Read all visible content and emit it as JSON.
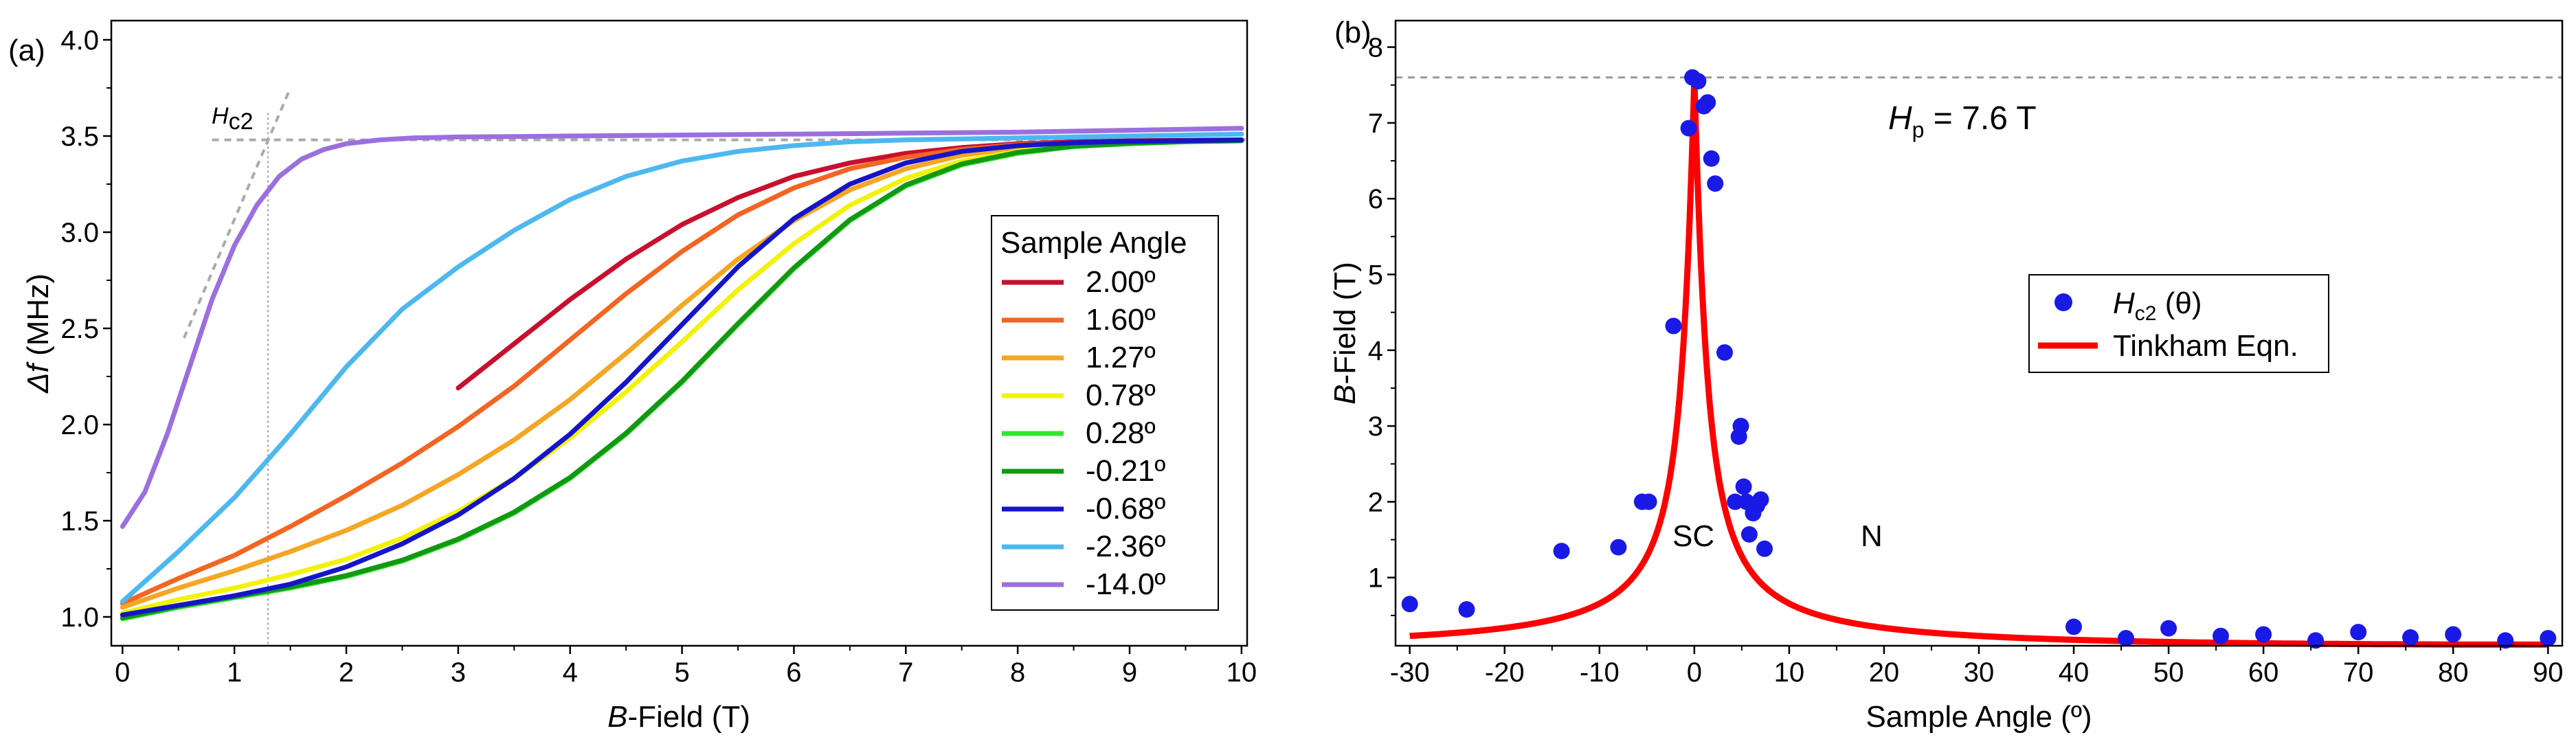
{
  "chart_data": [
    {
      "panel": "(a)",
      "type": "line",
      "xlabel_italic": "B",
      "xlabel_rest": "-Field (T)",
      "ylabel_italic": "Δf",
      "ylabel_rest": " (MHz)",
      "xlim": [
        -0.1,
        10.05
      ],
      "ylim": [
        0.85,
        4.1
      ],
      "xticks": [
        "0",
        "1",
        "2",
        "3",
        "4",
        "5",
        "6",
        "7",
        "8",
        "9",
        "10"
      ],
      "yticks": [
        "1.0",
        "1.5",
        "2.0",
        "2.5",
        "3.0",
        "3.5",
        "4.0"
      ],
      "legend_title": "Sample Angle",
      "annotation": {
        "main": "H",
        "sub": "c2",
        "x": 1.3
      },
      "guides": {
        "plateau_y": 3.48,
        "hc2_x": 1.3
      },
      "series": [
        {
          "name": "2.00º",
          "color": "#c8102e",
          "x": [
            3.0,
            3.5,
            4.0,
            4.5,
            5.0,
            5.5,
            6.0,
            6.5,
            7.0,
            7.5,
            8.0,
            8.5,
            9.0,
            9.5,
            10.0
          ],
          "y": [
            2.19,
            2.42,
            2.65,
            2.86,
            3.04,
            3.18,
            3.29,
            3.36,
            3.41,
            3.44,
            3.46,
            3.47,
            3.475,
            3.478,
            3.48
          ]
        },
        {
          "name": "1.60º",
          "color": "#f26522",
          "x": [
            0,
            0.5,
            1.0,
            1.5,
            2.0,
            2.5,
            3.0,
            3.5,
            4.0,
            4.5,
            5.0,
            5.5,
            6.0,
            6.5,
            7.0,
            7.5,
            8.0,
            8.5,
            9.0,
            9.5,
            10.0
          ],
          "y": [
            1.07,
            1.2,
            1.32,
            1.47,
            1.63,
            1.8,
            1.99,
            2.2,
            2.44,
            2.68,
            2.9,
            3.09,
            3.23,
            3.33,
            3.39,
            3.43,
            3.455,
            3.465,
            3.47,
            3.475,
            3.48
          ]
        },
        {
          "name": "1.27º",
          "color": "#f5a623",
          "x": [
            0,
            0.5,
            1.0,
            1.5,
            2.0,
            2.5,
            3.0,
            3.5,
            4.0,
            4.5,
            5.0,
            5.5,
            6.0,
            6.5,
            7.0,
            7.5,
            8.0,
            8.5,
            9.0,
            9.5,
            10.0
          ],
          "y": [
            1.05,
            1.15,
            1.24,
            1.34,
            1.45,
            1.58,
            1.74,
            1.92,
            2.13,
            2.37,
            2.62,
            2.86,
            3.06,
            3.22,
            3.33,
            3.4,
            3.44,
            3.46,
            3.47,
            3.475,
            3.48
          ]
        },
        {
          "name": "0.78º",
          "color": "#f2f20a",
          "x": [
            0,
            0.5,
            1.0,
            1.5,
            2.0,
            2.5,
            3.0,
            3.5,
            4.0,
            4.5,
            5.0,
            5.5,
            6.0,
            6.5,
            7.0,
            7.5,
            8.0,
            8.5,
            9.0,
            9.5,
            10.0
          ],
          "y": [
            1.02,
            1.09,
            1.15,
            1.22,
            1.3,
            1.41,
            1.55,
            1.72,
            1.93,
            2.17,
            2.43,
            2.7,
            2.94,
            3.14,
            3.28,
            3.37,
            3.42,
            3.45,
            3.465,
            3.47,
            3.475
          ]
        },
        {
          "name": "0.28º",
          "color": "#33e633",
          "x": [
            0,
            0.5,
            1.0,
            1.5,
            2.0,
            2.5,
            3.0,
            3.5,
            4.0,
            4.5,
            5.0,
            5.5,
            6.0,
            6.5,
            7.0,
            7.5,
            8.0,
            8.5,
            9.0,
            9.5,
            10.0
          ],
          "y": [
            0.99,
            1.05,
            1.1,
            1.15,
            1.21,
            1.29,
            1.4,
            1.54,
            1.72,
            1.95,
            2.22,
            2.52,
            2.81,
            3.06,
            3.24,
            3.35,
            3.41,
            3.445,
            3.46,
            3.47,
            3.475
          ]
        },
        {
          "name": "-0.21º",
          "color": "#119911",
          "x": [
            0,
            0.5,
            1.0,
            1.5,
            2.0,
            2.5,
            3.0,
            3.5,
            4.0,
            4.5,
            5.0,
            5.5,
            6.0,
            6.5,
            7.0,
            7.5,
            8.0,
            8.5,
            9.0,
            9.5,
            10.0
          ],
          "y": [
            0.995,
            1.055,
            1.105,
            1.155,
            1.215,
            1.295,
            1.405,
            1.545,
            1.725,
            1.955,
            2.225,
            2.525,
            2.815,
            3.065,
            3.245,
            3.355,
            3.415,
            3.447,
            3.462,
            3.471,
            3.476
          ]
        },
        {
          "name": "-0.68º",
          "color": "#1515c8",
          "x": [
            0,
            0.5,
            1.0,
            1.5,
            2.0,
            2.5,
            3.0,
            3.5,
            4.0,
            4.5,
            5.0,
            5.5,
            6.0,
            6.5,
            7.0,
            7.5,
            8.0,
            8.5,
            9.0,
            9.5,
            10.0
          ],
          "y": [
            1.01,
            1.06,
            1.11,
            1.17,
            1.26,
            1.38,
            1.53,
            1.72,
            1.95,
            2.22,
            2.52,
            2.82,
            3.07,
            3.25,
            3.36,
            3.42,
            3.45,
            3.465,
            3.472,
            3.476,
            3.48
          ]
        },
        {
          "name": "-2.36º",
          "color": "#4db8f0",
          "x": [
            0,
            0.5,
            1.0,
            1.5,
            2.0,
            2.5,
            3.0,
            3.5,
            4.0,
            4.5,
            5.0,
            5.5,
            6.0,
            6.5,
            7.0,
            7.5,
            8.0,
            8.5,
            9.0,
            9.5,
            10.0
          ],
          "y": [
            1.08,
            1.34,
            1.62,
            1.95,
            2.3,
            2.6,
            2.82,
            3.01,
            3.17,
            3.29,
            3.37,
            3.42,
            3.45,
            3.47,
            3.48,
            3.485,
            3.49,
            3.495,
            3.5,
            3.505,
            3.51
          ]
        },
        {
          "name": "-14.0º",
          "color": "#9b6fe0",
          "x": [
            0,
            0.2,
            0.4,
            0.6,
            0.8,
            1.0,
            1.2,
            1.4,
            1.6,
            1.8,
            2.0,
            2.3,
            2.6,
            3.0,
            4.0,
            5.0,
            6.0,
            7.0,
            8.0,
            9.0,
            10.0
          ],
          "y": [
            1.47,
            1.65,
            1.95,
            2.3,
            2.65,
            2.93,
            3.14,
            3.29,
            3.38,
            3.43,
            3.46,
            3.48,
            3.49,
            3.495,
            3.5,
            3.505,
            3.51,
            3.515,
            3.52,
            3.53,
            3.54
          ]
        }
      ]
    },
    {
      "panel": "(b)",
      "type": "scatter",
      "xlabel": "Sample Angle (º)",
      "ylabel_italic": "B",
      "ylabel_rest": "-Field (T)",
      "xlim": [
        -31.5,
        91.5
      ],
      "ylim": [
        0.1,
        8.35
      ],
      "xticks": [
        "-30",
        "-20",
        "-10",
        "0",
        "10",
        "20",
        "30",
        "40",
        "50",
        "60",
        "70",
        "80",
        "90"
      ],
      "yticks": [
        "1",
        "2",
        "3",
        "4",
        "5",
        "6",
        "7",
        "8"
      ],
      "hp_label": {
        "main": "H",
        "sub": "p",
        "rest": " = 7.6 T",
        "value": 7.6
      },
      "region_labels": [
        {
          "text": "SC",
          "x": 0.0,
          "y": 1.0
        },
        {
          "text": "N",
          "x": 18.5,
          "y": 1.0
        }
      ],
      "legend": {
        "scatter_label_main": "H",
        "scatter_label_sub": "c2",
        "scatter_label_rest": " (θ)",
        "fit_label": "Tinkham Eqn."
      },
      "colors": {
        "points": "#1a1ae6",
        "fit": "#ff0000",
        "guide": "#999999"
      },
      "fit": {
        "equation": "Tinkham",
        "hp": 7.6,
        "hperp": 0.115
      },
      "points": [
        {
          "x": -30,
          "y": 0.65
        },
        {
          "x": -24,
          "y": 0.58
        },
        {
          "x": -14,
          "y": 1.35
        },
        {
          "x": -8,
          "y": 1.4
        },
        {
          "x": -5.5,
          "y": 2.0
        },
        {
          "x": -4.8,
          "y": 2.0
        },
        {
          "x": -2.2,
          "y": 4.32
        },
        {
          "x": -0.6,
          "y": 6.93
        },
        {
          "x": -0.2,
          "y": 7.6
        },
        {
          "x": 0.4,
          "y": 7.55
        },
        {
          "x": 1.0,
          "y": 7.22
        },
        {
          "x": 1.4,
          "y": 7.27
        },
        {
          "x": 1.8,
          "y": 6.53
        },
        {
          "x": 2.2,
          "y": 6.2
        },
        {
          "x": 3.2,
          "y": 3.97
        },
        {
          "x": 4.3,
          "y": 2.0
        },
        {
          "x": 4.7,
          "y": 2.86
        },
        {
          "x": 4.9,
          "y": 3.0
        },
        {
          "x": 5.2,
          "y": 2.2
        },
        {
          "x": 5.5,
          "y": 2.0
        },
        {
          "x": 5.8,
          "y": 1.57
        },
        {
          "x": 6.2,
          "y": 1.85
        },
        {
          "x": 6.6,
          "y": 1.95
        },
        {
          "x": 7.0,
          "y": 2.03
        },
        {
          "x": 7.4,
          "y": 1.38
        },
        {
          "x": 40,
          "y": 0.35
        },
        {
          "x": 45.5,
          "y": 0.2
        },
        {
          "x": 50,
          "y": 0.33
        },
        {
          "x": 55.5,
          "y": 0.23
        },
        {
          "x": 60,
          "y": 0.25
        },
        {
          "x": 65.5,
          "y": 0.17
        },
        {
          "x": 70,
          "y": 0.28
        },
        {
          "x": 75.5,
          "y": 0.21
        },
        {
          "x": 80,
          "y": 0.25
        },
        {
          "x": 85.5,
          "y": 0.17
        },
        {
          "x": 90,
          "y": 0.2
        }
      ]
    }
  ]
}
